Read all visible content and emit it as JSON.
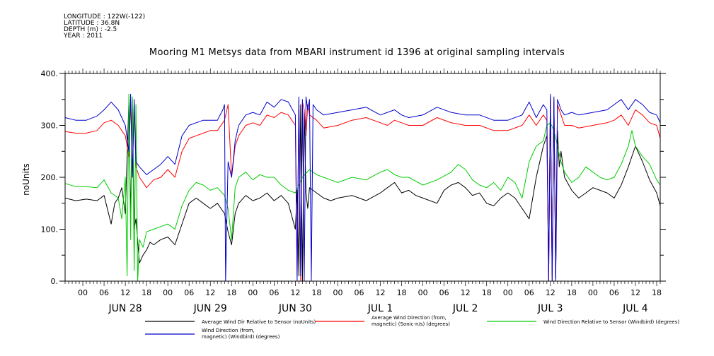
{
  "meta": {
    "longitude": "LONGITUDE : 122W(-122)",
    "latitude": "LATITUDE : 36.8N",
    "depth": "DEPTH (m) : -2.5",
    "year": "YEAR : 2011"
  },
  "chart_data": {
    "type": "line",
    "title": "Mooring M1 Metsys data from MBARI instrument id 1396 at original sampling intervals",
    "xlabel": "",
    "ylabel": "noUnits",
    "ylim": [
      0,
      400
    ],
    "yticks": [
      0,
      100,
      200,
      300,
      400
    ],
    "xlim": [
      -5,
      163
    ],
    "x_unit": "hours since 2011-06-28 00:00",
    "hour_tick_labels": [
      "00",
      "06",
      "12",
      "18"
    ],
    "hour_ticks": [
      0,
      6,
      12,
      18,
      24,
      30,
      36,
      42,
      48,
      54,
      60,
      66,
      72,
      78,
      84,
      90,
      96,
      102,
      108,
      114,
      120,
      126,
      132,
      138,
      144,
      150,
      156,
      162
    ],
    "day_labels": [
      "JUN 28",
      "JUN 29",
      "JUN 30",
      "JUL  1",
      "JUL  2",
      "JUL  3",
      "JUL  4"
    ],
    "day_label_hours": [
      12,
      36,
      60,
      84,
      108,
      132,
      156
    ],
    "grid": false,
    "legend_position": "bottom",
    "series": [
      {
        "name": "Average Wind Dir Relative to Sensor (noUnits)",
        "color": "#000000",
        "x": [
          -5,
          -2,
          1,
          4,
          6,
          8,
          9,
          10,
          11,
          12,
          13,
          13.5,
          14,
          14.5,
          15,
          16,
          17,
          18,
          19,
          20,
          22,
          24,
          26,
          28,
          30,
          32,
          34,
          36,
          38,
          40,
          41,
          42,
          43,
          44,
          46,
          48,
          50,
          52,
          54,
          56,
          58,
          60,
          60.5,
          61,
          61.5,
          62,
          62.5,
          63,
          63.5,
          64,
          65,
          66,
          68,
          70,
          72,
          76,
          80,
          84,
          86,
          88,
          90,
          92,
          94,
          96,
          100,
          102,
          104,
          106,
          108,
          110,
          112,
          114,
          116,
          118,
          120,
          122,
          124,
          126,
          128,
          129,
          130,
          131,
          131.5,
          132,
          132.5,
          133,
          133.5,
          134,
          134.5,
          135,
          136,
          138,
          140,
          142,
          144,
          146,
          148,
          150,
          152,
          154,
          156,
          158,
          160,
          162,
          163
        ],
        "values": [
          160,
          155,
          158,
          155,
          165,
          110,
          150,
          160,
          180,
          130,
          345,
          120,
          350,
          100,
          120,
          35,
          50,
          60,
          75,
          70,
          80,
          85,
          70,
          110,
          150,
          160,
          150,
          140,
          150,
          130,
          95,
          70,
          130,
          150,
          165,
          155,
          160,
          170,
          155,
          165,
          150,
          100,
          175,
          10,
          340,
          0,
          330,
          170,
          140,
          180,
          175,
          170,
          160,
          155,
          160,
          165,
          155,
          170,
          180,
          190,
          170,
          175,
          165,
          160,
          150,
          175,
          185,
          190,
          180,
          165,
          170,
          150,
          145,
          160,
          170,
          160,
          140,
          120,
          200,
          230,
          260,
          280,
          20,
          350,
          10,
          345,
          5,
          290,
          220,
          250,
          200,
          175,
          160,
          170,
          180,
          175,
          170,
          160,
          185,
          220,
          260,
          230,
          195,
          170,
          145
        ]
      },
      {
        "name": "Average Wind Direction (from, magnetic) (Sonic-n/s) (degrees)",
        "color": "#ff0000",
        "x": [
          -5,
          -2,
          1,
          4,
          6,
          8,
          10,
          12,
          13,
          13.5,
          14,
          14.5,
          15,
          16,
          18,
          20,
          22,
          24,
          26,
          28,
          30,
          32,
          34,
          36,
          38,
          40,
          41,
          42,
          43,
          44,
          46,
          48,
          50,
          52,
          54,
          56,
          58,
          60,
          60.5,
          61,
          61.5,
          62,
          62.5,
          63,
          63.5,
          64,
          66,
          68,
          72,
          76,
          80,
          84,
          86,
          88,
          90,
          92,
          96,
          100,
          104,
          108,
          112,
          116,
          120,
          124,
          126,
          128,
          130,
          131,
          131.5,
          132,
          132.5,
          133,
          133.5,
          134,
          135,
          136,
          138,
          140,
          144,
          148,
          150,
          152,
          154,
          156,
          158,
          160,
          162,
          163
        ],
        "values": [
          288,
          285,
          285,
          290,
          305,
          310,
          300,
          280,
          240,
          350,
          200,
          340,
          220,
          200,
          180,
          195,
          200,
          215,
          200,
          250,
          275,
          280,
          285,
          290,
          290,
          310,
          340,
          200,
          260,
          280,
          300,
          305,
          300,
          320,
          315,
          325,
          320,
          300,
          10,
          350,
          0,
          345,
          330,
          280,
          340,
          320,
          310,
          295,
          300,
          310,
          315,
          305,
          300,
          310,
          305,
          300,
          300,
          315,
          305,
          300,
          300,
          290,
          290,
          300,
          320,
          300,
          320,
          310,
          0,
          355,
          0,
          350,
          20,
          340,
          320,
          300,
          300,
          295,
          300,
          305,
          310,
          320,
          300,
          330,
          320,
          305,
          300,
          275
        ]
      },
      {
        "name": "Wind Direction Relative to Sensor (Windbird) (degrees)",
        "color": "#00cc00",
        "x": [
          -5,
          -2,
          1,
          4,
          6,
          8,
          10,
          11,
          12,
          12.5,
          13,
          13.5,
          14,
          14.5,
          15,
          15.5,
          16,
          17,
          18,
          20,
          22,
          24,
          26,
          28,
          30,
          32,
          34,
          36,
          38,
          40,
          41,
          42,
          43,
          44,
          46,
          48,
          50,
          52,
          54,
          56,
          58,
          60,
          62,
          64,
          66,
          68,
          70,
          72,
          76,
          80,
          84,
          86,
          88,
          90,
          92,
          96,
          100,
          104,
          106,
          108,
          110,
          112,
          114,
          116,
          118,
          120,
          122,
          124,
          126,
          128,
          130,
          131,
          132,
          133,
          134,
          135,
          136,
          138,
          140,
          142,
          144,
          146,
          148,
          150,
          152,
          154,
          155,
          156,
          158,
          160,
          162,
          163
        ],
        "values": [
          188,
          182,
          182,
          180,
          195,
          170,
          160,
          120,
          200,
          10,
          360,
          80,
          355,
          20,
          340,
          0,
          80,
          65,
          95,
          100,
          105,
          110,
          100,
          145,
          175,
          190,
          185,
          175,
          180,
          165,
          140,
          80,
          180,
          200,
          210,
          195,
          205,
          200,
          200,
          185,
          175,
          170,
          200,
          215,
          205,
          200,
          195,
          190,
          200,
          195,
          210,
          215,
          205,
          200,
          200,
          185,
          195,
          210,
          225,
          215,
          195,
          185,
          180,
          190,
          175,
          200,
          190,
          160,
          230,
          260,
          270,
          300,
          305,
          290,
          260,
          230,
          210,
          190,
          200,
          220,
          210,
          200,
          195,
          200,
          225,
          260,
          290,
          260,
          240,
          225,
          195,
          185
        ]
      },
      {
        "name": "Wind Direction (from, magnetic) (Windbird) (degrees)",
        "color": "#0000cc",
        "x": [
          -5,
          -2,
          1,
          4,
          6,
          8,
          10,
          12,
          13,
          13.5,
          14,
          14.5,
          15,
          16,
          18,
          20,
          22,
          24,
          26,
          28,
          30,
          32,
          34,
          36,
          38,
          39.5,
          40,
          40.3,
          41,
          42,
          43,
          44,
          46,
          48,
          50,
          52,
          54,
          56,
          58,
          60,
          60.5,
          61,
          61.5,
          62,
          62.5,
          63,
          63.5,
          64,
          64.5,
          65,
          66,
          68,
          72,
          76,
          80,
          84,
          86,
          88,
          90,
          92,
          96,
          100,
          104,
          108,
          112,
          116,
          120,
          124,
          126,
          128,
          130,
          131,
          131.5,
          132,
          132.5,
          133,
          133.5,
          134,
          135,
          136,
          138,
          140,
          144,
          148,
          150,
          152,
          154,
          156,
          158,
          160,
          162,
          163
        ],
        "values": [
          315,
          310,
          310,
          318,
          330,
          345,
          330,
          300,
          250,
          360,
          200,
          350,
          230,
          220,
          205,
          215,
          225,
          240,
          225,
          280,
          300,
          305,
          310,
          310,
          310,
          330,
          340,
          0,
          230,
          200,
          270,
          300,
          320,
          325,
          320,
          345,
          335,
          350,
          345,
          320,
          0,
          355,
          10,
          350,
          0,
          355,
          330,
          350,
          0,
          340,
          330,
          320,
          325,
          330,
          335,
          320,
          325,
          330,
          320,
          315,
          320,
          335,
          325,
          320,
          320,
          310,
          310,
          320,
          345,
          315,
          340,
          330,
          0,
          360,
          0,
          355,
          0,
          350,
          330,
          320,
          325,
          320,
          325,
          330,
          340,
          350,
          330,
          350,
          340,
          325,
          320,
          305
        ]
      }
    ]
  }
}
